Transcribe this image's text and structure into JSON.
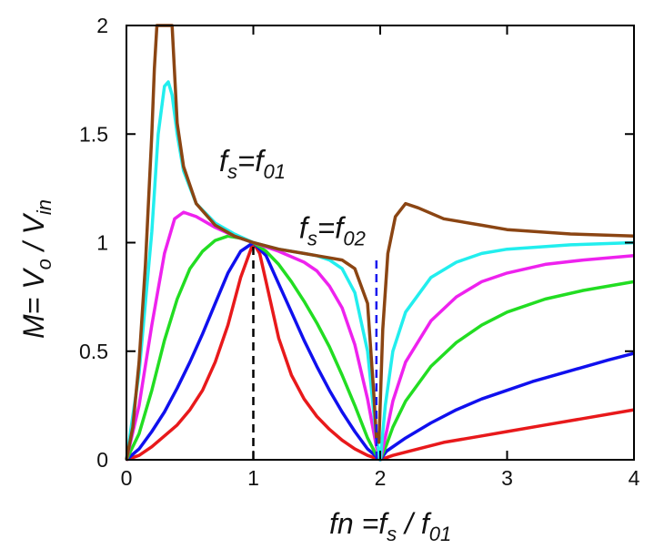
{
  "chart_data": {
    "type": "line",
    "xlabel": {
      "main": "fn =f",
      "s_sub": "s",
      "div": " / f",
      "o_sub": "01"
    },
    "ylabel": {
      "main": "M= V",
      "o_sub": "o",
      "div": " / V",
      "in_sub": "in"
    },
    "xlim": [
      0,
      4
    ],
    "ylim": [
      0,
      2
    ],
    "x_ticks": [
      "0",
      "1",
      "2",
      "3",
      "4"
    ],
    "y_ticks": [
      "0",
      "0.5",
      "1",
      "1.5",
      "2"
    ],
    "grid": false,
    "annotations": [
      {
        "id": "fs1",
        "main": "f",
        "sub1": "s",
        "mid": "=f",
        "sub2": "01",
        "x": 0.73,
        "y": 1.33
      },
      {
        "id": "fs2",
        "main": "f",
        "sub1": "s",
        "mid": "=f",
        "sub2": "02",
        "x": 1.36,
        "y": 1.02
      }
    ],
    "vlines": [
      {
        "x": 1.0,
        "y_top": 1.0,
        "color": "#000000"
      },
      {
        "x": 1.97,
        "y_top": 0.92,
        "color": "#1a1aee"
      }
    ],
    "series": [
      {
        "color": "#e8191b",
        "points": [
          [
            0,
            0
          ],
          [
            0.1,
            0.02
          ],
          [
            0.2,
            0.06
          ],
          [
            0.3,
            0.11
          ],
          [
            0.4,
            0.16
          ],
          [
            0.5,
            0.23
          ],
          [
            0.6,
            0.32
          ],
          [
            0.7,
            0.45
          ],
          [
            0.8,
            0.62
          ],
          [
            0.9,
            0.84
          ],
          [
            1.0,
            1.0
          ],
          [
            1.05,
            0.95
          ],
          [
            1.1,
            0.82
          ],
          [
            1.2,
            0.56
          ],
          [
            1.3,
            0.39
          ],
          [
            1.4,
            0.28
          ],
          [
            1.5,
            0.2
          ],
          [
            1.6,
            0.14
          ],
          [
            1.7,
            0.09
          ],
          [
            1.8,
            0.05
          ],
          [
            1.9,
            0.02
          ],
          [
            2.0,
            0
          ],
          [
            2.1,
            0.02
          ],
          [
            2.3,
            0.05
          ],
          [
            2.5,
            0.08
          ],
          [
            2.8,
            0.11
          ],
          [
            3.0,
            0.13
          ],
          [
            3.3,
            0.16
          ],
          [
            3.6,
            0.19
          ],
          [
            4.0,
            0.23
          ]
        ]
      },
      {
        "color": "#1010ee",
        "points": [
          [
            0,
            0
          ],
          [
            0.1,
            0.05
          ],
          [
            0.2,
            0.13
          ],
          [
            0.3,
            0.22
          ],
          [
            0.4,
            0.33
          ],
          [
            0.5,
            0.45
          ],
          [
            0.6,
            0.58
          ],
          [
            0.7,
            0.72
          ],
          [
            0.8,
            0.86
          ],
          [
            0.9,
            0.96
          ],
          [
            1.0,
            1.0
          ],
          [
            1.1,
            0.94
          ],
          [
            1.2,
            0.81
          ],
          [
            1.3,
            0.68
          ],
          [
            1.4,
            0.55
          ],
          [
            1.5,
            0.43
          ],
          [
            1.6,
            0.32
          ],
          [
            1.7,
            0.22
          ],
          [
            1.8,
            0.13
          ],
          [
            1.9,
            0.05
          ],
          [
            2.0,
            0
          ],
          [
            2.05,
            0.04
          ],
          [
            2.2,
            0.1
          ],
          [
            2.4,
            0.17
          ],
          [
            2.6,
            0.23
          ],
          [
            2.8,
            0.28
          ],
          [
            3.0,
            0.32
          ],
          [
            3.2,
            0.36
          ],
          [
            3.5,
            0.41
          ],
          [
            3.8,
            0.46
          ],
          [
            4.0,
            0.49
          ]
        ]
      },
      {
        "color": "#22dd22",
        "points": [
          [
            0,
            0
          ],
          [
            0.1,
            0.12
          ],
          [
            0.2,
            0.32
          ],
          [
            0.3,
            0.55
          ],
          [
            0.4,
            0.74
          ],
          [
            0.5,
            0.88
          ],
          [
            0.6,
            0.96
          ],
          [
            0.7,
            1.01
          ],
          [
            0.8,
            1.03
          ],
          [
            0.9,
            1.02
          ],
          [
            1.0,
            1.0
          ],
          [
            1.1,
            0.96
          ],
          [
            1.2,
            0.9
          ],
          [
            1.3,
            0.82
          ],
          [
            1.4,
            0.73
          ],
          [
            1.5,
            0.63
          ],
          [
            1.6,
            0.52
          ],
          [
            1.7,
            0.39
          ],
          [
            1.8,
            0.25
          ],
          [
            1.9,
            0.1
          ],
          [
            1.97,
            0.02
          ],
          [
            2.0,
            0
          ],
          [
            2.05,
            0.07
          ],
          [
            2.1,
            0.15
          ],
          [
            2.2,
            0.27
          ],
          [
            2.4,
            0.43
          ],
          [
            2.6,
            0.54
          ],
          [
            2.8,
            0.62
          ],
          [
            3.0,
            0.68
          ],
          [
            3.3,
            0.74
          ],
          [
            3.6,
            0.78
          ],
          [
            4.0,
            0.82
          ]
        ]
      },
      {
        "color": "#ee22ee",
        "points": [
          [
            0,
            0
          ],
          [
            0.1,
            0.25
          ],
          [
            0.2,
            0.62
          ],
          [
            0.3,
            0.95
          ],
          [
            0.38,
            1.11
          ],
          [
            0.45,
            1.14
          ],
          [
            0.55,
            1.12
          ],
          [
            0.7,
            1.07
          ],
          [
            0.85,
            1.03
          ],
          [
            1.0,
            1.0
          ],
          [
            1.2,
            0.96
          ],
          [
            1.4,
            0.91
          ],
          [
            1.5,
            0.87
          ],
          [
            1.6,
            0.8
          ],
          [
            1.7,
            0.7
          ],
          [
            1.8,
            0.53
          ],
          [
            1.9,
            0.28
          ],
          [
            1.97,
            0.06
          ],
          [
            2.0,
            0
          ],
          [
            2.05,
            0.13
          ],
          [
            2.1,
            0.27
          ],
          [
            2.2,
            0.45
          ],
          [
            2.4,
            0.64
          ],
          [
            2.6,
            0.75
          ],
          [
            2.8,
            0.82
          ],
          [
            3.0,
            0.86
          ],
          [
            3.3,
            0.9
          ],
          [
            3.6,
            0.92
          ],
          [
            4.0,
            0.94
          ]
        ]
      },
      {
        "color": "#22eeee",
        "points": [
          [
            0,
            0
          ],
          [
            0.1,
            0.4
          ],
          [
            0.2,
            1.05
          ],
          [
            0.25,
            1.5
          ],
          [
            0.3,
            1.72
          ],
          [
            0.33,
            1.74
          ],
          [
            0.36,
            1.68
          ],
          [
            0.4,
            1.5
          ],
          [
            0.45,
            1.33
          ],
          [
            0.55,
            1.18
          ],
          [
            0.7,
            1.09
          ],
          [
            0.85,
            1.04
          ],
          [
            1.0,
            1.0
          ],
          [
            1.2,
            0.97
          ],
          [
            1.4,
            0.95
          ],
          [
            1.5,
            0.94
          ],
          [
            1.6,
            0.92
          ],
          [
            1.7,
            0.88
          ],
          [
            1.8,
            0.77
          ],
          [
            1.9,
            0.5
          ],
          [
            1.97,
            0.1
          ],
          [
            2.0,
            0
          ],
          [
            2.04,
            0.25
          ],
          [
            2.1,
            0.5
          ],
          [
            2.2,
            0.68
          ],
          [
            2.4,
            0.84
          ],
          [
            2.6,
            0.91
          ],
          [
            2.8,
            0.95
          ],
          [
            3.0,
            0.97
          ],
          [
            3.5,
            0.99
          ],
          [
            4.0,
            1.0
          ]
        ]
      },
      {
        "color": "#8b4513",
        "points": [
          [
            0,
            0
          ],
          [
            0.05,
            0.15
          ],
          [
            0.1,
            0.45
          ],
          [
            0.15,
            0.9
          ],
          [
            0.2,
            1.5
          ],
          [
            0.22,
            1.8
          ],
          [
            0.24,
            2.0
          ],
          [
            0.36,
            2.0
          ],
          [
            0.4,
            1.55
          ],
          [
            0.45,
            1.35
          ],
          [
            0.55,
            1.18
          ],
          [
            0.7,
            1.08
          ],
          [
            0.85,
            1.03
          ],
          [
            1.0,
            1.0
          ],
          [
            1.2,
            0.97
          ],
          [
            1.4,
            0.95
          ],
          [
            1.5,
            0.94
          ],
          [
            1.6,
            0.93
          ],
          [
            1.7,
            0.92
          ],
          [
            1.8,
            0.88
          ],
          [
            1.9,
            0.72
          ],
          [
            1.95,
            0.3
          ],
          [
            1.97,
            0.1
          ],
          [
            1.99,
            0.08
          ],
          [
            2.02,
            0.6
          ],
          [
            2.06,
            0.95
          ],
          [
            2.12,
            1.12
          ],
          [
            2.2,
            1.18
          ],
          [
            2.3,
            1.16
          ],
          [
            2.5,
            1.11
          ],
          [
            2.8,
            1.08
          ],
          [
            3.0,
            1.06
          ],
          [
            3.5,
            1.04
          ],
          [
            4.0,
            1.03
          ]
        ]
      }
    ]
  }
}
